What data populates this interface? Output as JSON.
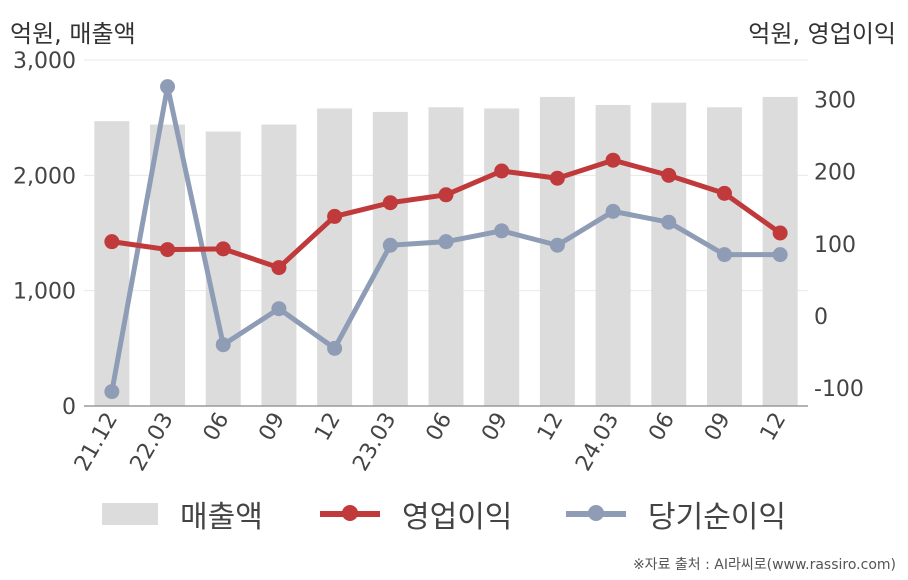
{
  "chart_data": {
    "type": "bar+line",
    "categories": [
      "21.12",
      "22.03",
      "06",
      "09",
      "12",
      "23.03",
      "06",
      "09",
      "12",
      "24.03",
      "06",
      "09",
      "12"
    ],
    "left_axis": {
      "label": "억원, 매출액",
      "ticks": [
        "0",
        "1,000",
        "2,000",
        "3,000"
      ],
      "ylim": [
        0,
        3000
      ]
    },
    "right_axis": {
      "label": "억원, 영업이익",
      "ticks": [
        "-100",
        "0",
        "100",
        "200",
        "300"
      ],
      "ylim": [
        -125,
        355
      ]
    },
    "series": [
      {
        "name": "매출액",
        "kind": "bar",
        "axis": "left",
        "color": "#dcdcdc",
        "values": [
          2470,
          2440,
          2380,
          2440,
          2580,
          2550,
          2590,
          2580,
          2680,
          2610,
          2630,
          2590,
          2680
        ]
      },
      {
        "name": "영업이익",
        "kind": "line",
        "axis": "right",
        "color": "#c0393b",
        "values": [
          103,
          92,
          93,
          67,
          138,
          157,
          168,
          201,
          191,
          216,
          195,
          170,
          115
        ]
      },
      {
        "name": "당기순이익",
        "kind": "line",
        "axis": "right",
        "color": "#8e9cb6",
        "values": [
          -105,
          318,
          -40,
          10,
          -45,
          98,
          103,
          118,
          98,
          145,
          130,
          85,
          85
        ]
      }
    ],
    "grid": true,
    "legend": "bottom"
  },
  "source": "※자료 출처 : AI라씨로(www.rassiro.com)"
}
